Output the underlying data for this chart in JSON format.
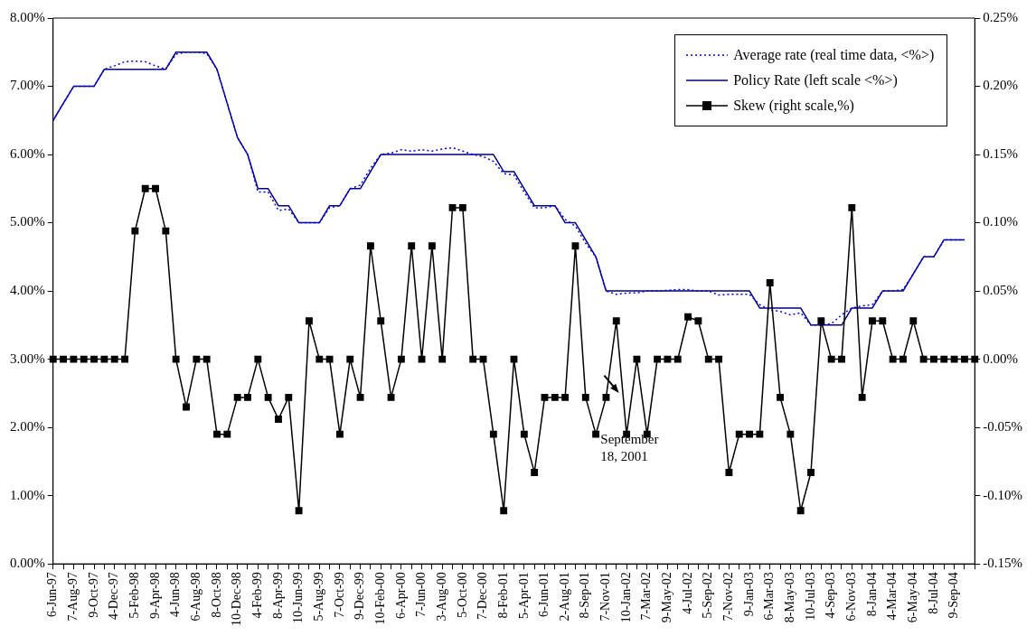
{
  "chart_data": {
    "type": "line",
    "categories": [
      "6-Jun-97",
      null,
      "7-Aug-97",
      null,
      "9-Oct-97",
      null,
      "4-Dec-97",
      null,
      "5-Feb-98",
      null,
      "9-Apr-98",
      null,
      "4-Jun-98",
      null,
      "6-Aug-98",
      null,
      "8-Oct-98",
      null,
      "10-Dec-98",
      null,
      "4-Feb-99",
      null,
      "8-Apr-99",
      null,
      "10-Jun-99",
      null,
      "5-Aug-99",
      null,
      "7-Oct-99",
      null,
      "9-Dec-99",
      null,
      "10-Feb-00",
      null,
      "6-Apr-00",
      null,
      "7-Jun-00",
      null,
      "3-Aug-00",
      null,
      "5-Oct-00",
      null,
      "7-Dec-00",
      null,
      "8-Feb-01",
      null,
      "5-Apr-01",
      null,
      "6-Jun-01",
      null,
      "2-Aug-01",
      null,
      "8-Sep-01",
      null,
      "7-Nov-01",
      null,
      "10-Jan-02",
      null,
      "7-Mar-02",
      null,
      "9-May-02",
      null,
      "4-Jul-02",
      null,
      "5-Sep-02",
      null,
      "7-Nov-02",
      null,
      "9-Jan-03",
      null,
      "6-Mar-03",
      null,
      "8-May-03",
      null,
      "10-Jul-03",
      null,
      "4-Sep-03",
      null,
      "6-Nov-03",
      null,
      "8-Jan-04",
      null,
      "4-Mar-04",
      null,
      "6-May-04",
      null,
      "8-Jul-04",
      null,
      "9-Sep-04",
      null,
      null
    ],
    "series": [
      {
        "name": "Average rate (real time data, <%>)",
        "color": "#0000ff",
        "line_style": "dotted",
        "marker": "none",
        "values": [
          6.5,
          6.75,
          7.0,
          7.0,
          7.0,
          7.25,
          7.3,
          7.36,
          7.37,
          7.36,
          7.3,
          7.25,
          7.47,
          7.5,
          7.5,
          7.48,
          7.25,
          6.75,
          6.25,
          6.0,
          5.45,
          5.45,
          5.18,
          5.2,
          5.0,
          5.0,
          5.0,
          5.22,
          5.25,
          5.5,
          5.55,
          5.8,
          6.0,
          6.02,
          6.07,
          6.05,
          6.07,
          6.05,
          6.08,
          6.1,
          6.05,
          6.0,
          5.97,
          5.9,
          5.72,
          5.7,
          5.45,
          5.22,
          5.22,
          5.25,
          5.05,
          4.95,
          4.7,
          4.5,
          4.0,
          3.95,
          3.97,
          3.97,
          4.0,
          4.0,
          4.01,
          4.02,
          4.02,
          4.0,
          4.0,
          3.94,
          3.95,
          3.95,
          3.95,
          3.8,
          3.72,
          3.7,
          3.65,
          3.68,
          3.5,
          3.5,
          3.52,
          3.65,
          3.75,
          3.78,
          3.8,
          4.0,
          4.0,
          4.02,
          4.25,
          4.5,
          4.5,
          4.75,
          4.75,
          4.75,
          null
        ]
      },
      {
        "name": "Policy Rate (left scale <%>)",
        "color": "#000080",
        "line_style": "solid",
        "marker": "none",
        "values": [
          6.5,
          6.75,
          7.0,
          7.0,
          7.0,
          7.25,
          7.25,
          7.25,
          7.25,
          7.25,
          7.25,
          7.25,
          7.5,
          7.5,
          7.5,
          7.5,
          7.25,
          6.75,
          6.25,
          6.0,
          5.5,
          5.5,
          5.25,
          5.25,
          5.0,
          5.0,
          5.0,
          5.25,
          5.25,
          5.5,
          5.5,
          5.75,
          6.0,
          6.0,
          6.0,
          6.0,
          6.0,
          6.0,
          6.0,
          6.0,
          6.0,
          6.0,
          6.0,
          6.0,
          5.75,
          5.75,
          5.5,
          5.25,
          5.25,
          5.25,
          5.0,
          5.0,
          4.75,
          4.5,
          4.0,
          4.0,
          4.0,
          4.0,
          4.0,
          4.0,
          4.0,
          4.0,
          4.0,
          4.0,
          4.0,
          4.0,
          4.0,
          4.0,
          4.0,
          3.75,
          3.75,
          3.75,
          3.75,
          3.75,
          3.5,
          3.5,
          3.5,
          3.5,
          3.75,
          3.75,
          3.75,
          4.0,
          4.0,
          4.0,
          4.25,
          4.5,
          4.5,
          4.75,
          4.75,
          4.75,
          null
        ]
      },
      {
        "name": "Skew (right scale,%)",
        "color": "#000000",
        "axis": "y2",
        "line_style": "solid",
        "marker": "square",
        "values": [
          0,
          0,
          0,
          0,
          0,
          0,
          0,
          0,
          0.094,
          0.125,
          0.125,
          0.094,
          0,
          -0.035,
          0,
          0,
          -0.055,
          -0.055,
          -0.028,
          -0.028,
          0,
          -0.028,
          -0.044,
          -0.028,
          -0.111,
          0.028,
          0,
          0,
          -0.055,
          0,
          -0.028,
          0.083,
          0.028,
          -0.028,
          0,
          0.083,
          0,
          0.083,
          0,
          0.111,
          0.111,
          0,
          0,
          -0.055,
          -0.111,
          0,
          -0.055,
          -0.083,
          -0.028,
          -0.028,
          -0.028,
          0.083,
          -0.028,
          -0.055,
          -0.028,
          0.028,
          -0.055,
          0,
          -0.055,
          0,
          0,
          0,
          0.031,
          0.028,
          0,
          0,
          -0.083,
          -0.055,
          -0.055,
          -0.055,
          0.056,
          -0.028,
          -0.055,
          -0.111,
          -0.083,
          0.028,
          0,
          0,
          0.111,
          -0.028,
          0.028,
          0.028,
          0,
          0,
          0.028,
          0,
          0,
          0,
          0,
          0,
          0
        ]
      }
    ],
    "ylim": [
      0,
      8
    ],
    "yticks": [
      {
        "value": 0,
        "label": "0.00%"
      },
      {
        "value": 1,
        "label": "1.00%"
      },
      {
        "value": 2,
        "label": "2.00%"
      },
      {
        "value": 3,
        "label": "3.00%"
      },
      {
        "value": 4,
        "label": "4.00%"
      },
      {
        "value": 5,
        "label": "5.00%"
      },
      {
        "value": 6,
        "label": "6.00%"
      },
      {
        "value": 7,
        "label": "7.00%"
      },
      {
        "value": 8,
        "label": "8.00%"
      }
    ],
    "y2lim": [
      -0.15,
      0.25
    ],
    "y2ticks": [
      {
        "value": -0.15,
        "label": "-0.15%"
      },
      {
        "value": -0.1,
        "label": "-0.10%"
      },
      {
        "value": -0.05,
        "label": "-0.05%"
      },
      {
        "value": 0,
        "label": "0.00%"
      },
      {
        "value": 0.05,
        "label": "0.05%"
      },
      {
        "value": 0.1,
        "label": "0.10%"
      },
      {
        "value": 0.15,
        "label": "0.15%"
      },
      {
        "value": 0.2,
        "label": "0.20%"
      },
      {
        "value": 0.25,
        "label": "0.25%"
      }
    ],
    "grid": false,
    "legend": "top right",
    "annotations": [
      "September 18, 2001"
    ]
  }
}
